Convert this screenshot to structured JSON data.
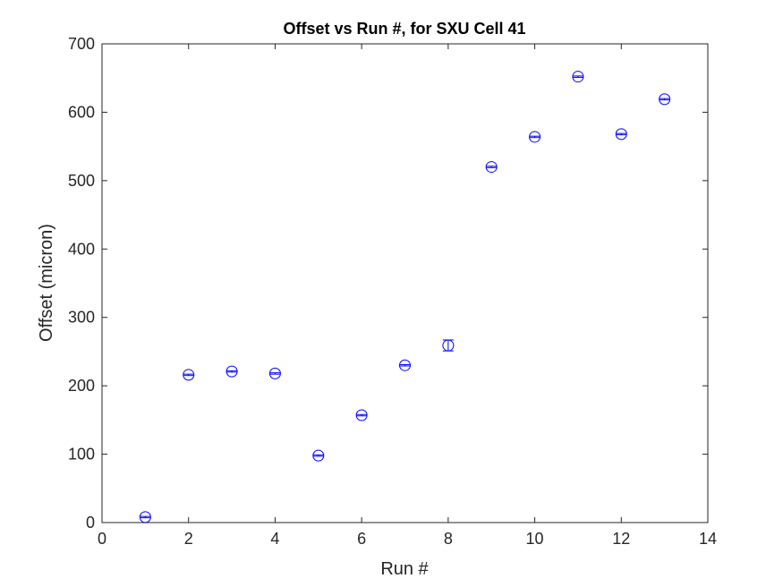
{
  "chart_data": {
    "type": "scatter",
    "title": "Offset vs Run #, for SXU Cell 41",
    "xlabel": "Run #",
    "ylabel": "Offset (micron)",
    "xlim": [
      0,
      14
    ],
    "ylim": [
      0,
      700
    ],
    "xticks": [
      0,
      2,
      4,
      6,
      8,
      10,
      12,
      14
    ],
    "yticks": [
      0,
      100,
      200,
      300,
      400,
      500,
      600,
      700
    ],
    "grid": false,
    "marker": "circle-errorbar",
    "color": "#0000ff",
    "points": [
      {
        "x": 1,
        "y": 8,
        "err": 1
      },
      {
        "x": 2,
        "y": 216,
        "err": 1
      },
      {
        "x": 3,
        "y": 221,
        "err": 1
      },
      {
        "x": 4,
        "y": 218,
        "err": 1
      },
      {
        "x": 5,
        "y": 98,
        "err": 1
      },
      {
        "x": 6,
        "y": 157,
        "err": 1
      },
      {
        "x": 7,
        "y": 230,
        "err": 1
      },
      {
        "x": 8,
        "y": 259,
        "err": 8
      },
      {
        "x": 9,
        "y": 520,
        "err": 1
      },
      {
        "x": 10,
        "y": 564,
        "err": 1
      },
      {
        "x": 11,
        "y": 652,
        "err": 1
      },
      {
        "x": 12,
        "y": 568,
        "err": 1
      },
      {
        "x": 13,
        "y": 619,
        "err": 1
      }
    ]
  }
}
